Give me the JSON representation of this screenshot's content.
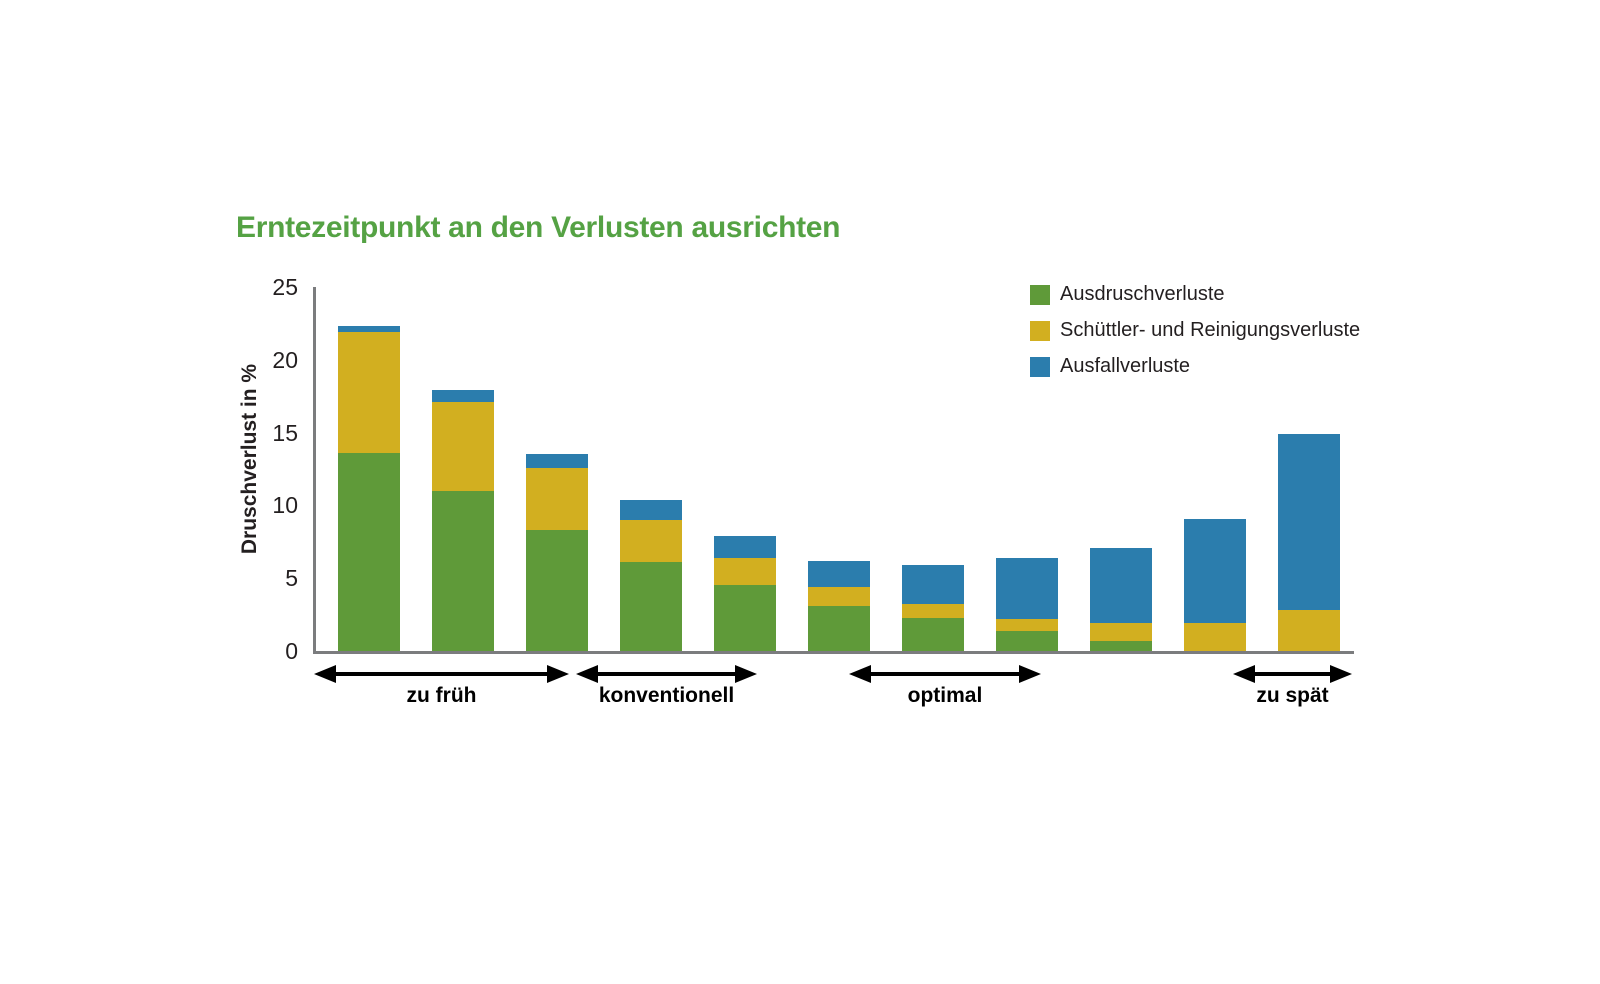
{
  "title": {
    "text": "Erntezeitpunkt an den Verlusten ausrichten",
    "color": "#55a244"
  },
  "chart_data": {
    "type": "bar",
    "stacked": true,
    "title": "Erntezeitpunkt an den Verlusten ausrichten",
    "xlabel": "",
    "ylabel": "Druschverlust in %",
    "ylim": [
      0,
      25
    ],
    "yticks": [
      0,
      5,
      10,
      15,
      20,
      25
    ],
    "grid": false,
    "bar_count": 11,
    "axis_color": "#7b7c7e",
    "series": [
      {
        "name": "Ausdruschverluste",
        "key": "ausdruschverluste",
        "color": "#5f9a39",
        "values": [
          13.6,
          11.0,
          8.3,
          6.1,
          4.5,
          3.1,
          2.3,
          1.4,
          0.7,
          0,
          0
        ]
      },
      {
        "name": "Schüttler- und Reinigungsverluste",
        "key": "schuettler-und-reinigungsverluste",
        "color": "#d2af20",
        "values": [
          8.3,
          6.1,
          4.3,
          2.9,
          1.9,
          1.3,
          0.9,
          0.8,
          1.2,
          1.9,
          2.8
        ]
      },
      {
        "name": "Ausfallverluste",
        "key": "ausfallverluste",
        "color": "#2b7dad",
        "values": [
          0.4,
          0.8,
          0.9,
          1.4,
          1.5,
          1.8,
          2.7,
          4.2,
          5.2,
          7.2,
          12.1
        ]
      }
    ],
    "totals": [
      22.3,
      17.9,
      13.5,
      10.4,
      7.9,
      6.2,
      5.9,
      6.4,
      7.1,
      9.1,
      14.9
    ],
    "x_groups": [
      {
        "label": "zu früh",
        "bars": "1-3"
      },
      {
        "label": "konventionell",
        "bars": "4-5"
      },
      {
        "label": "optimal",
        "bars": "6-8"
      },
      {
        "label": "zu spät",
        "bars": "10-11"
      }
    ],
    "legend_position": "top-right"
  }
}
